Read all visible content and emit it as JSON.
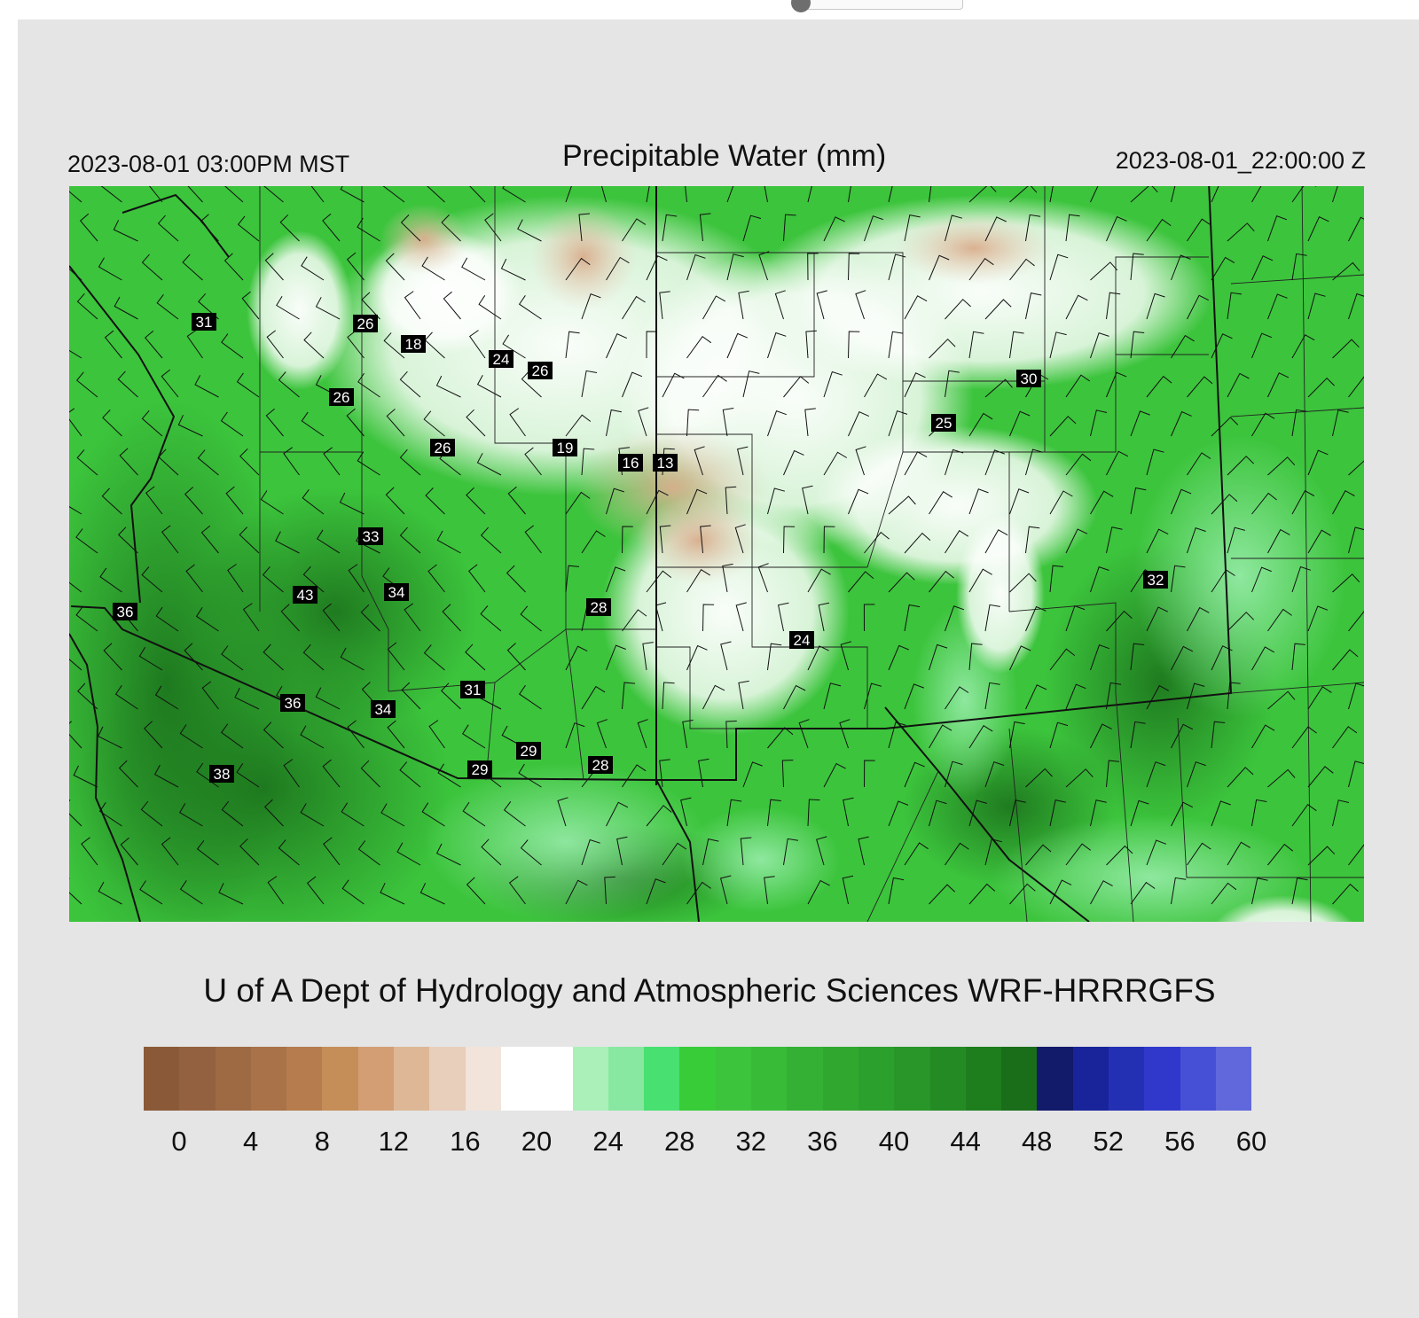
{
  "header": {
    "valid_local": "2023-08-01 03:00PM MST",
    "title": "Precipitable Water (mm)",
    "valid_utc": "2023-08-01_22:00:00 Z"
  },
  "credit": "U of A Dept of Hydrology and Atmospheric Sciences WRF-HRRRGFS",
  "map": {
    "background_color": "#3cc43c",
    "station_values": [
      "31",
      "26",
      "18",
      "24",
      "26",
      "26",
      "26",
      "19",
      "16",
      "13",
      "30",
      "25",
      "33",
      "43",
      "34",
      "36",
      "28",
      "24",
      "32",
      "36",
      "34",
      "31",
      "29",
      "29",
      "28",
      "38"
    ]
  },
  "colorbar": {
    "colors": [
      "#8a5a38",
      "#946140",
      "#9e6a44",
      "#a97248",
      "#b67c4e",
      "#c58e58",
      "#d39e74",
      "#ddb796",
      "#e8cfbb",
      "#f2e4da",
      "#ffffff",
      "#ffffff",
      "#aaf0b8",
      "#88e8a2",
      "#48e070",
      "#38cc38",
      "#3cc43c",
      "#38bc38",
      "#34b034",
      "#30a830",
      "#2ca02c",
      "#289628",
      "#248a24",
      "#1e7e1e",
      "#1a6e1a",
      "#121a6a",
      "#1a249a",
      "#2430b4",
      "#3038cc",
      "#4650d6",
      "#6068dc"
    ],
    "tick_labels": [
      "0",
      "4",
      "8",
      "12",
      "16",
      "20",
      "24",
      "28",
      "32",
      "36",
      "40",
      "44",
      "48",
      "52",
      "56",
      "60"
    ]
  }
}
